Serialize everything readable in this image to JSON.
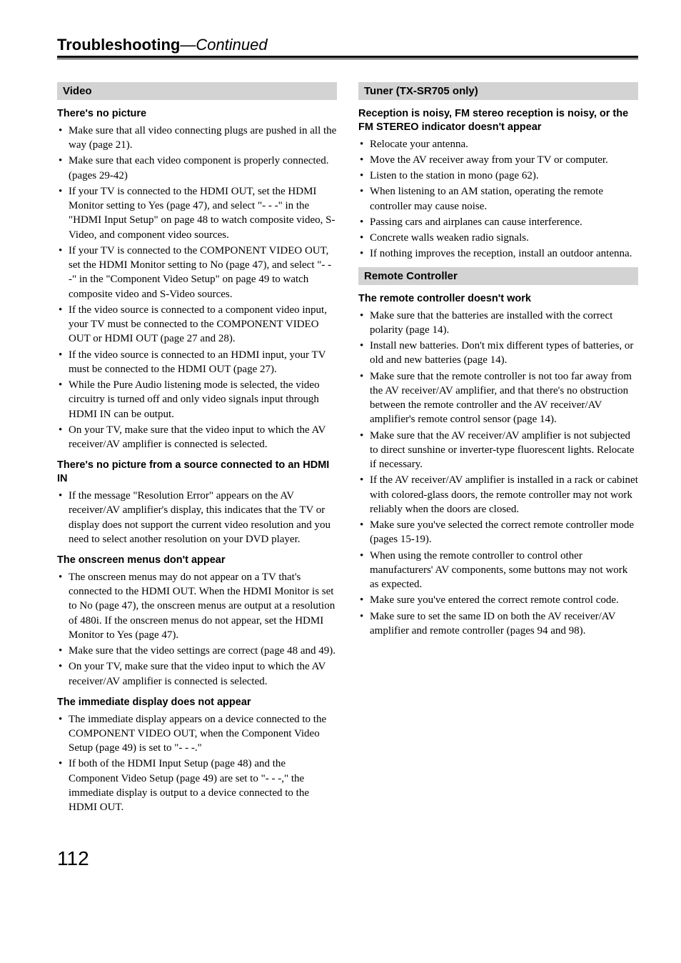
{
  "page_title_main": "Troubleshooting",
  "page_title_sep": "—",
  "page_title_cont": "Continued",
  "page_number": "112",
  "left": {
    "video_header": "Video",
    "no_picture_topic": "There's no picture",
    "no_picture_items": [
      "Make sure that all video connecting plugs are pushed in all the way (page 21).",
      "Make sure that each video component is properly connected. (pages 29-42)",
      "If your TV is connected to the HDMI OUT, set the HDMI Monitor setting to Yes (page 47), and select \"- - -\" in the \"HDMI Input Setup\" on page 48 to watch composite video, S-Video, and component video sources.",
      "If your TV is connected to the COMPONENT VIDEO OUT, set the HDMI Monitor setting to No (page 47), and select \"- - -\" in the \"Component Video Setup\" on page 49 to watch composite video and S-Video sources.",
      "If the video source is connected to a component video input, your TV must be connected to the COMPONENT VIDEO OUT or HDMI OUT (page 27 and 28).",
      "If the video source is connected to an HDMI input, your TV must be connected to the HDMI OUT (page 27).",
      "While the Pure Audio listening mode is selected, the video circuitry is turned off and only video signals input through HDMI IN can be output.",
      "On your TV, make sure that the video input to which the AV receiver/AV amplifier is connected is selected."
    ],
    "hdmi_in_topic": "There's no picture from a source connected to an HDMI IN",
    "hdmi_in_items": [
      "If the message \"Resolution Error\" appears on the AV receiver/AV amplifier's display, this indicates that the TV or display does not support the current video resolution and you need to select another resolution on your DVD player."
    ],
    "onscreen_topic": "The onscreen menus don't appear",
    "onscreen_items": [
      "The onscreen menus may do not appear on a TV that's connected to the HDMI OUT. When the HDMI Monitor is set to No (page 47), the onscreen menus are output at a resolution of 480i. If the onscreen menus do not appear, set the HDMI Monitor to Yes (page 47).",
      "Make sure that the video settings are correct (page 48 and 49).",
      "On your TV, make sure that the video input to which the AV receiver/AV amplifier is connected is selected."
    ],
    "immediate_topic": "The immediate display does not appear",
    "immediate_items": [
      "The immediate display appears on a device connected to the COMPONENT VIDEO OUT, when the Component Video Setup (page 49) is set to \"- - -.\"",
      "If both of the HDMI Input Setup (page 48) and the Component Video Setup (page 49) are set to \"- - -,\" the immediate display is output to a device connected to the HDMI OUT."
    ]
  },
  "right": {
    "tuner_header": "Tuner (TX-SR705 only)",
    "reception_topic": "Reception is noisy, FM stereo reception is noisy, or the FM STEREO indicator doesn't appear",
    "reception_items": [
      "Relocate your antenna.",
      "Move the AV receiver away from your TV or computer.",
      "Listen to the station in mono (page 62).",
      "When listening to an AM station, operating the remote controller may cause noise.",
      "Passing cars and airplanes can cause interference.",
      "Concrete walls weaken radio signals.",
      "If nothing improves the reception, install an outdoor antenna."
    ],
    "remote_header": "Remote Controller",
    "remote_topic": "The remote controller doesn't work",
    "remote_items": [
      "Make sure that the batteries are installed with the correct polarity (page 14).",
      "Install new batteries. Don't mix different types of batteries, or old and new batteries (page 14).",
      "Make sure that the remote controller is not too far away from the AV receiver/AV amplifier, and that there's no obstruction between the remote controller and the AV receiver/AV amplifier's remote control sensor (page 14).",
      "Make sure that the AV receiver/AV amplifier is not subjected to direct sunshine or inverter-type fluorescent lights. Relocate if necessary.",
      "If the AV receiver/AV amplifier is installed in a rack or cabinet with colored-glass doors, the remote controller may not work reliably when the doors are closed.",
      "Make sure you've selected the correct remote controller mode (pages 15-19).",
      "When using the remote controller to control other manufacturers' AV components, some buttons may not work as expected.",
      "Make sure you've entered the correct remote control code.",
      "Make sure to set the same ID on both the AV receiver/AV amplifier and remote controller (pages 94 and 98)."
    ]
  }
}
